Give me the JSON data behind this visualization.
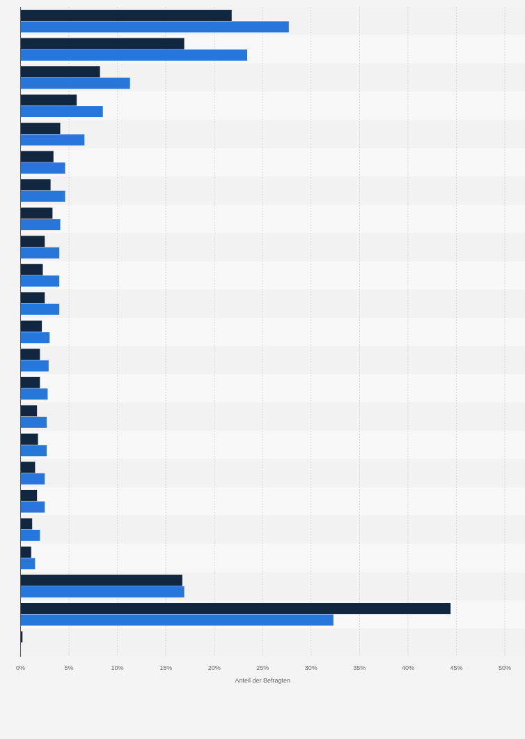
{
  "chart_data": {
    "type": "bar",
    "orientation": "horizontal",
    "categories": [
      null,
      null,
      null,
      null,
      null,
      null,
      null,
      null,
      null,
      null,
      null,
      null,
      null,
      null,
      null,
      null,
      null,
      null,
      null,
      null,
      null,
      null,
      null
    ],
    "series": [
      {
        "color": "#10273f",
        "values": [
          21.8,
          16.9,
          8.2,
          5.8,
          4.1,
          3.4,
          3.1,
          3.3,
          2.5,
          2.3,
          2.5,
          2.2,
          2.0,
          2.0,
          1.7,
          1.8,
          1.5,
          1.7,
          1.2,
          1.1,
          16.7,
          44.4,
          0.2
        ]
      },
      {
        "color": "#2776dc",
        "values": [
          27.7,
          23.4,
          11.3,
          8.5,
          6.6,
          4.6,
          4.6,
          4.1,
          4.0,
          4.0,
          4.0,
          3.0,
          2.9,
          2.8,
          2.7,
          2.7,
          2.5,
          2.5,
          2.0,
          1.5,
          16.9,
          32.3,
          null
        ]
      }
    ],
    "xlim": [
      0,
      50
    ],
    "xticks": [
      {
        "value": 0,
        "label": "0%"
      },
      {
        "value": 5,
        "label": "5%"
      },
      {
        "value": 10,
        "label": "10%"
      },
      {
        "value": 15,
        "label": "15%"
      },
      {
        "value": 20,
        "label": "20%"
      },
      {
        "value": 25,
        "label": "25%"
      },
      {
        "value": 30,
        "label": "30%"
      },
      {
        "value": 35,
        "label": "35%"
      },
      {
        "value": 40,
        "label": "40%"
      },
      {
        "value": 45,
        "label": "45%"
      },
      {
        "value": 50,
        "label": "50%"
      }
    ],
    "xlabel": "Anteil der Befragten",
    "grid": "x",
    "tick_labels": "x"
  }
}
